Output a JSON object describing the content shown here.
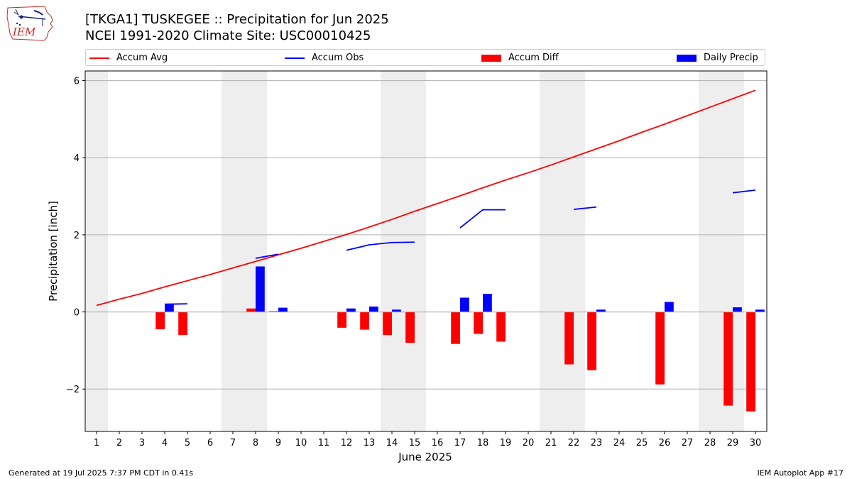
{
  "header": {
    "title_line1": "[TKGA1] TUSKEGEE :: Precipitation for Jun 2025",
    "title_line2": "NCEI 1991-2020 Climate Site: USC00010425"
  },
  "logo": {
    "text": "IEM",
    "icon": "iem-iowa-logo"
  },
  "legend": {
    "accum_avg": "Accum Avg",
    "accum_obs": "Accum Obs",
    "accum_diff": "Accum Diff",
    "daily_precip": "Daily Precip"
  },
  "colors": {
    "accum_avg": "#ff0000",
    "accum_obs": "#0000ff",
    "accum_diff": "#ff0000",
    "daily_precip": "#0000ff",
    "weekend_shade": "#eeeeee",
    "grid": "#b0b0b0"
  },
  "chart_data": {
    "type": "bar",
    "xlabel": "June 2025",
    "ylabel": "Precipitation [inch]",
    "ylim": [
      -3.1,
      6.25
    ],
    "yticks": [
      -2,
      0,
      2,
      4,
      6
    ],
    "ytick_labels": [
      "−2",
      "0",
      "2",
      "4",
      "6"
    ],
    "grid": true,
    "legend_position": "top",
    "x": [
      1,
      2,
      3,
      4,
      5,
      6,
      7,
      8,
      9,
      10,
      11,
      12,
      13,
      14,
      15,
      16,
      17,
      18,
      19,
      20,
      21,
      22,
      23,
      24,
      25,
      26,
      27,
      28,
      29,
      30
    ],
    "shaded_days": [
      [
        0.5,
        1.5
      ],
      [
        6.5,
        8.5
      ],
      [
        13.5,
        15.5
      ],
      [
        20.5,
        22.5
      ],
      [
        27.5,
        29.5
      ]
    ],
    "series": [
      {
        "name": "Accum Avg",
        "kind": "line",
        "values": [
          0.17,
          0.33,
          0.48,
          0.65,
          0.81,
          0.97,
          1.14,
          1.31,
          1.48,
          1.65,
          1.83,
          2.01,
          2.2,
          2.4,
          2.61,
          2.81,
          3.01,
          3.22,
          3.42,
          3.61,
          3.81,
          4.02,
          4.23,
          4.44,
          4.66,
          4.87,
          5.09,
          5.31,
          5.53,
          5.75
        ]
      },
      {
        "name": "Accum Obs",
        "kind": "line",
        "values": [
          null,
          null,
          null,
          0.2,
          0.21,
          null,
          null,
          1.39,
          1.5,
          null,
          null,
          1.6,
          1.74,
          1.8,
          1.81,
          null,
          2.18,
          2.65,
          2.65,
          null,
          null,
          2.66,
          2.72,
          null,
          null,
          null,
          null,
          null,
          3.09,
          3.16
        ]
      },
      {
        "name": "Accum Diff",
        "kind": "bar",
        "values": [
          null,
          null,
          null,
          -0.45,
          -0.6,
          null,
          null,
          0.09,
          0.02,
          null,
          null,
          -0.41,
          -0.46,
          -0.6,
          -0.8,
          null,
          -0.83,
          -0.57,
          -0.77,
          null,
          null,
          -1.36,
          -1.51,
          null,
          null,
          -1.88,
          null,
          null,
          -2.43,
          -2.58
        ]
      },
      {
        "name": "Daily Precip",
        "kind": "bar",
        "values": [
          null,
          null,
          null,
          0.2,
          null,
          null,
          null,
          1.18,
          0.11,
          null,
          null,
          0.09,
          0.14,
          0.06,
          null,
          null,
          0.37,
          0.47,
          null,
          null,
          null,
          null,
          0.06,
          null,
          null,
          0.26,
          null,
          null,
          0.12,
          0.06
        ]
      }
    ]
  },
  "footer": {
    "generated": "Generated at 19 Jul 2025 7:37 PM CDT in 0.41s",
    "app": "IEM Autoplot App #17"
  }
}
